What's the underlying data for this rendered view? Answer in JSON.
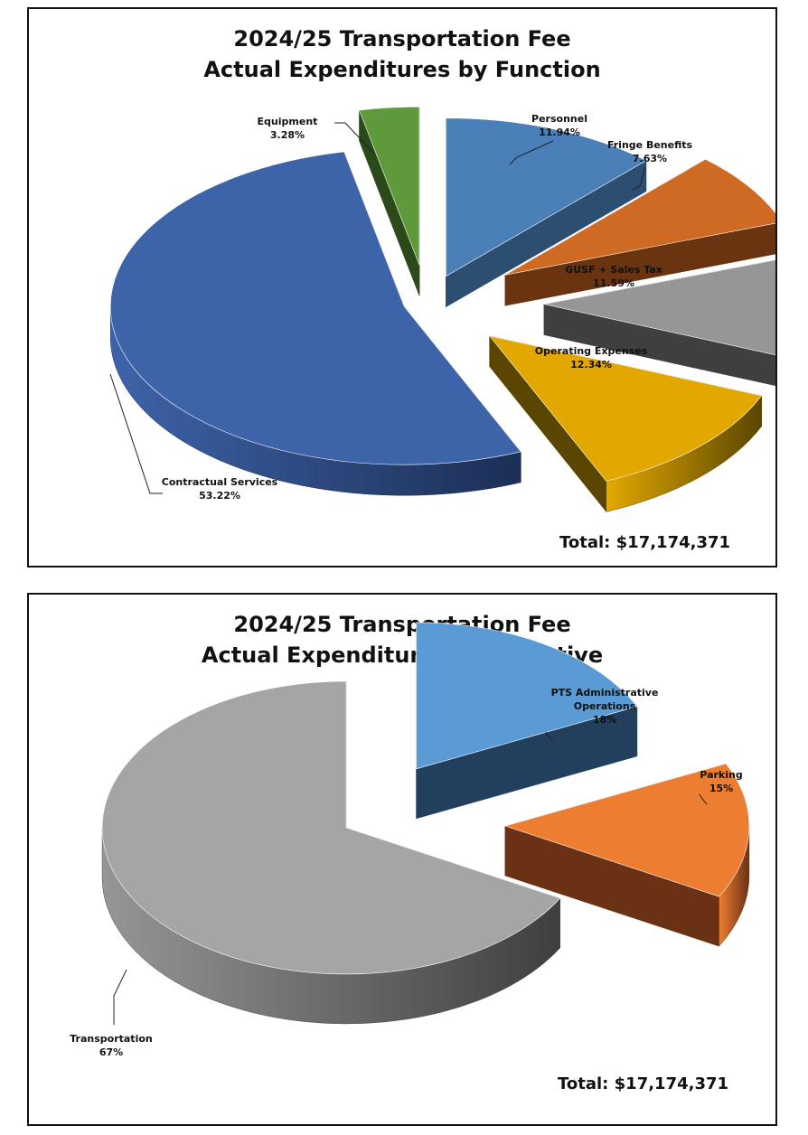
{
  "chart_data": [
    {
      "type": "pie",
      "title": [
        "2024/25 Transportation Fee",
        "Actual Expenditures by Function"
      ],
      "total_label": "Total:  $17,174,371",
      "slices": [
        {
          "name": "Personnel",
          "label_lines": [
            "Personnel"
          ],
          "value_label": "11.94%",
          "value": 11.94,
          "color": "#4a7fb8",
          "dark": "#2c4e70"
        },
        {
          "name": "Fringe Benefits",
          "label_lines": [
            "Fringe Benefits"
          ],
          "value_label": "7.63%",
          "value": 7.63,
          "color": "#cf6a24",
          "dark": "#6b3411"
        },
        {
          "name": "GUSF + Sales Tax",
          "label_lines": [
            "GUSF + Sales Tax"
          ],
          "value_label": "11.59%",
          "value": 11.59,
          "color": "#969696",
          "dark": "#3f3f3f"
        },
        {
          "name": "Operating Expenses",
          "label_lines": [
            "Operating Expenses"
          ],
          "value_label": "12.34%",
          "value": 12.34,
          "color": "#e3a800",
          "dark": "#5a4600"
        },
        {
          "name": "Contractual Services",
          "label_lines": [
            "Contractual Services"
          ],
          "value_label": "53.22%",
          "value": 53.22,
          "color": "#3d63a9",
          "dark": "#1c2f55"
        },
        {
          "name": "Equipment",
          "label_lines": [
            "Equipment"
          ],
          "value_label": "3.28%",
          "value": 3.28,
          "color": "#5e9a3c",
          "dark": "#2a4a1a"
        }
      ]
    },
    {
      "type": "pie",
      "title": [
        "2024/25 Transportation Fee",
        "Actual Expenditures by Initiative"
      ],
      "total_label": "Total:  $17,174,371",
      "slices": [
        {
          "name": "PTS Administrative Operations",
          "label_lines": [
            "PTS Administrative",
            "Operations"
          ],
          "value_label": "18%",
          "value": 18,
          "color": "#5b9bd5",
          "dark": "#22405e"
        },
        {
          "name": "Parking",
          "label_lines": [
            "Parking"
          ],
          "value_label": "15%",
          "value": 15,
          "color": "#ed7d31",
          "dark": "#6a3114"
        },
        {
          "name": "Transportation",
          "label_lines": [
            "Transportation"
          ],
          "value_label": "67%",
          "value": 67,
          "color": "#a5a5a5",
          "dark": "#4a4a4a"
        }
      ]
    }
  ]
}
